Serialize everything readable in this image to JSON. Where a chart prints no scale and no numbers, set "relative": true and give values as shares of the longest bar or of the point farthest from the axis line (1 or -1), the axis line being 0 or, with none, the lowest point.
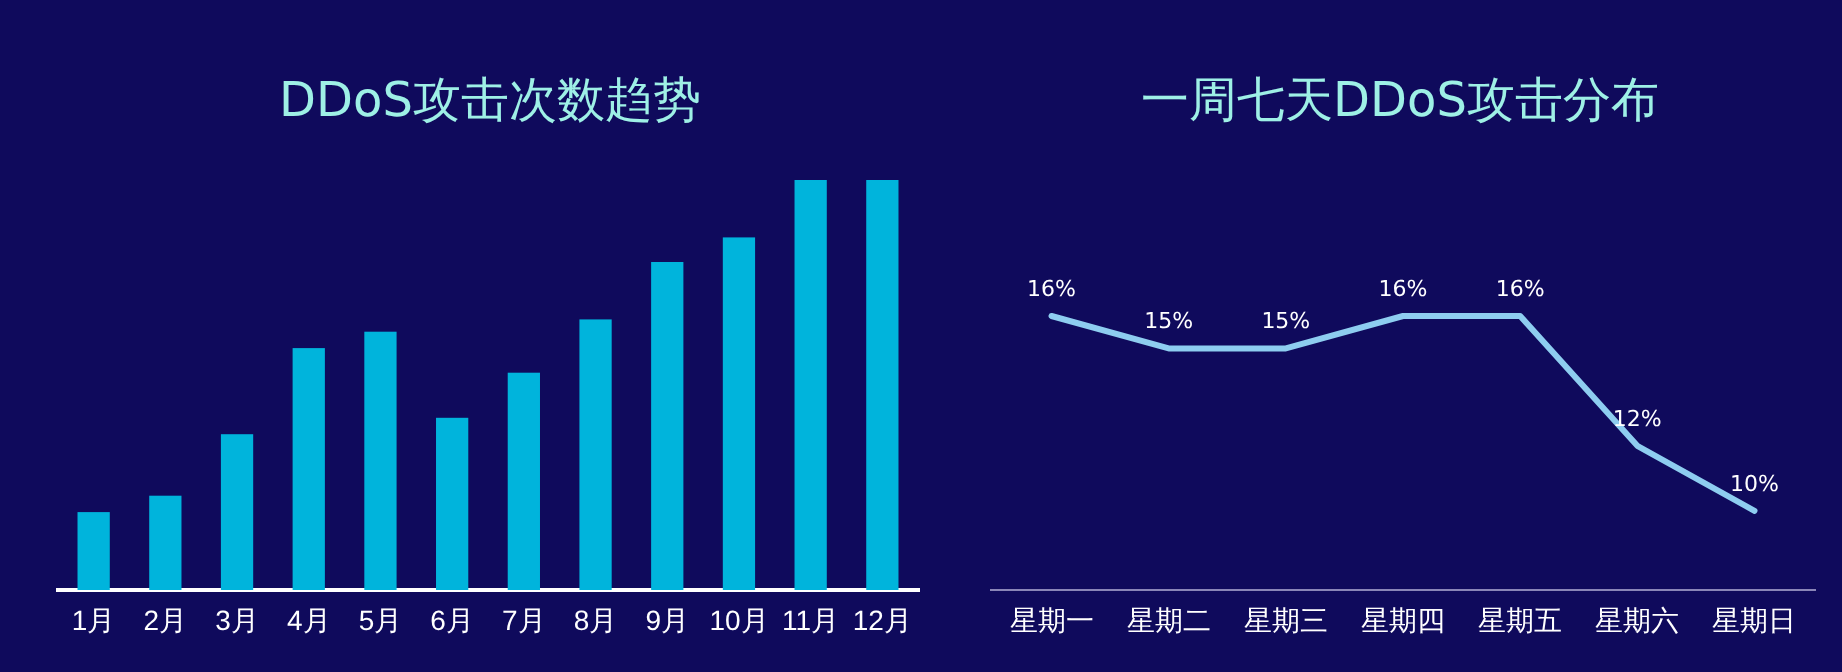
{
  "chart_data": [
    {
      "type": "bar",
      "title": "DDoS攻击次数趋势",
      "categories": [
        "1月",
        "2月",
        "3月",
        "4月",
        "5月",
        "6月",
        "7月",
        "8月",
        "9月",
        "10月",
        "11月",
        "12月"
      ],
      "relative": true,
      "color": "#00b4dc",
      "values": [
        0.19,
        0.23,
        0.38,
        0.59,
        0.63,
        0.42,
        0.53,
        0.66,
        0.8,
        0.86,
        1,
        1
      ]
    },
    {
      "type": "line",
      "title": "一周七天DDoS攻击分布",
      "categories": [
        "星期一",
        "星期二",
        "星期三",
        "星期四",
        "星期五",
        "星期六",
        "星期日"
      ],
      "color": "#8ecdf0",
      "data_labels": true,
      "values": [
        16,
        15,
        15,
        16,
        16,
        12,
        10
      ],
      "value_labels": [
        "16%",
        "15%",
        "15%",
        "16%",
        "16%",
        "12%",
        "10%"
      ]
    }
  ]
}
